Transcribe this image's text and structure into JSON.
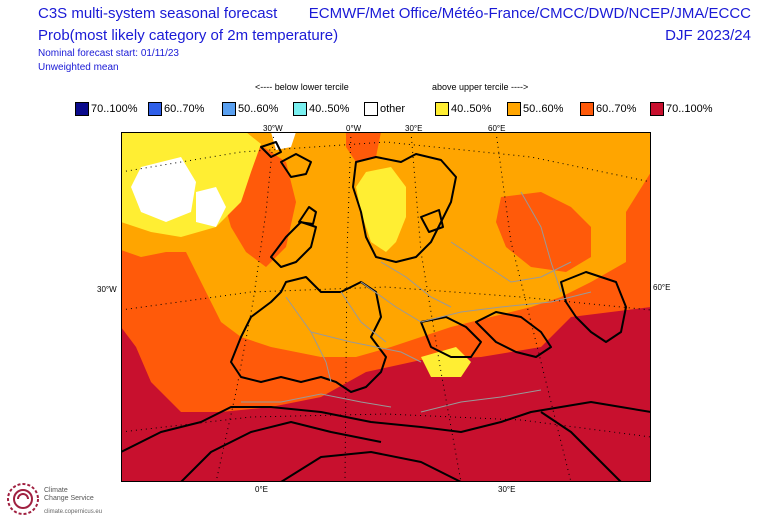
{
  "header": {
    "title_line1": "C3S multi-system seasonal forecast",
    "title_line2": "Prob(most likely category of 2m temperature)",
    "nominal_start": "Nominal forecast start: 01/11/23",
    "weighting": "Unweighted mean",
    "centres": "ECMWF/Met Office/Météo-France/CMCC/DWD/NCEP/JMA/ECCC",
    "season": "DJF 2023/24"
  },
  "legend": {
    "below_label": "<---- below lower tercile",
    "above_label": "above upper tercile ---->",
    "items": [
      {
        "label": "70..100%",
        "color": "#0a0a8c"
      },
      {
        "label": "60..70%",
        "color": "#2f5fe8"
      },
      {
        "label": "50..60%",
        "color": "#5aa0f0"
      },
      {
        "label": "40..50%",
        "color": "#7af0f0"
      },
      {
        "label": "other",
        "color": "#ffffff"
      },
      {
        "label": "40..50%",
        "color": "#ffee33"
      },
      {
        "label": "50..60%",
        "color": "#ffa500"
      },
      {
        "label": "60..70%",
        "color": "#ff5a0a"
      },
      {
        "label": "70..100%",
        "color": "#c8102e"
      }
    ]
  },
  "map": {
    "axis_labels": {
      "top_30w": "30°W",
      "top_0w": "0°W",
      "top_30e": "30°E",
      "top_60e": "60°E",
      "left_30w": "30°W",
      "right_60e": "60°E",
      "bottom_0e": "0°E",
      "bottom_30e": "30°E"
    },
    "category_colors": {
      "upper_40_50": "#ffee33",
      "upper_50_60": "#ffa500",
      "upper_60_70": "#ff5a0a",
      "upper_70_100": "#c8102e",
      "other": "#ffffff"
    }
  },
  "logo": {
    "org_line1": "Climate",
    "org_line2": "Change Service",
    "url": "climate.copernicus.eu"
  }
}
